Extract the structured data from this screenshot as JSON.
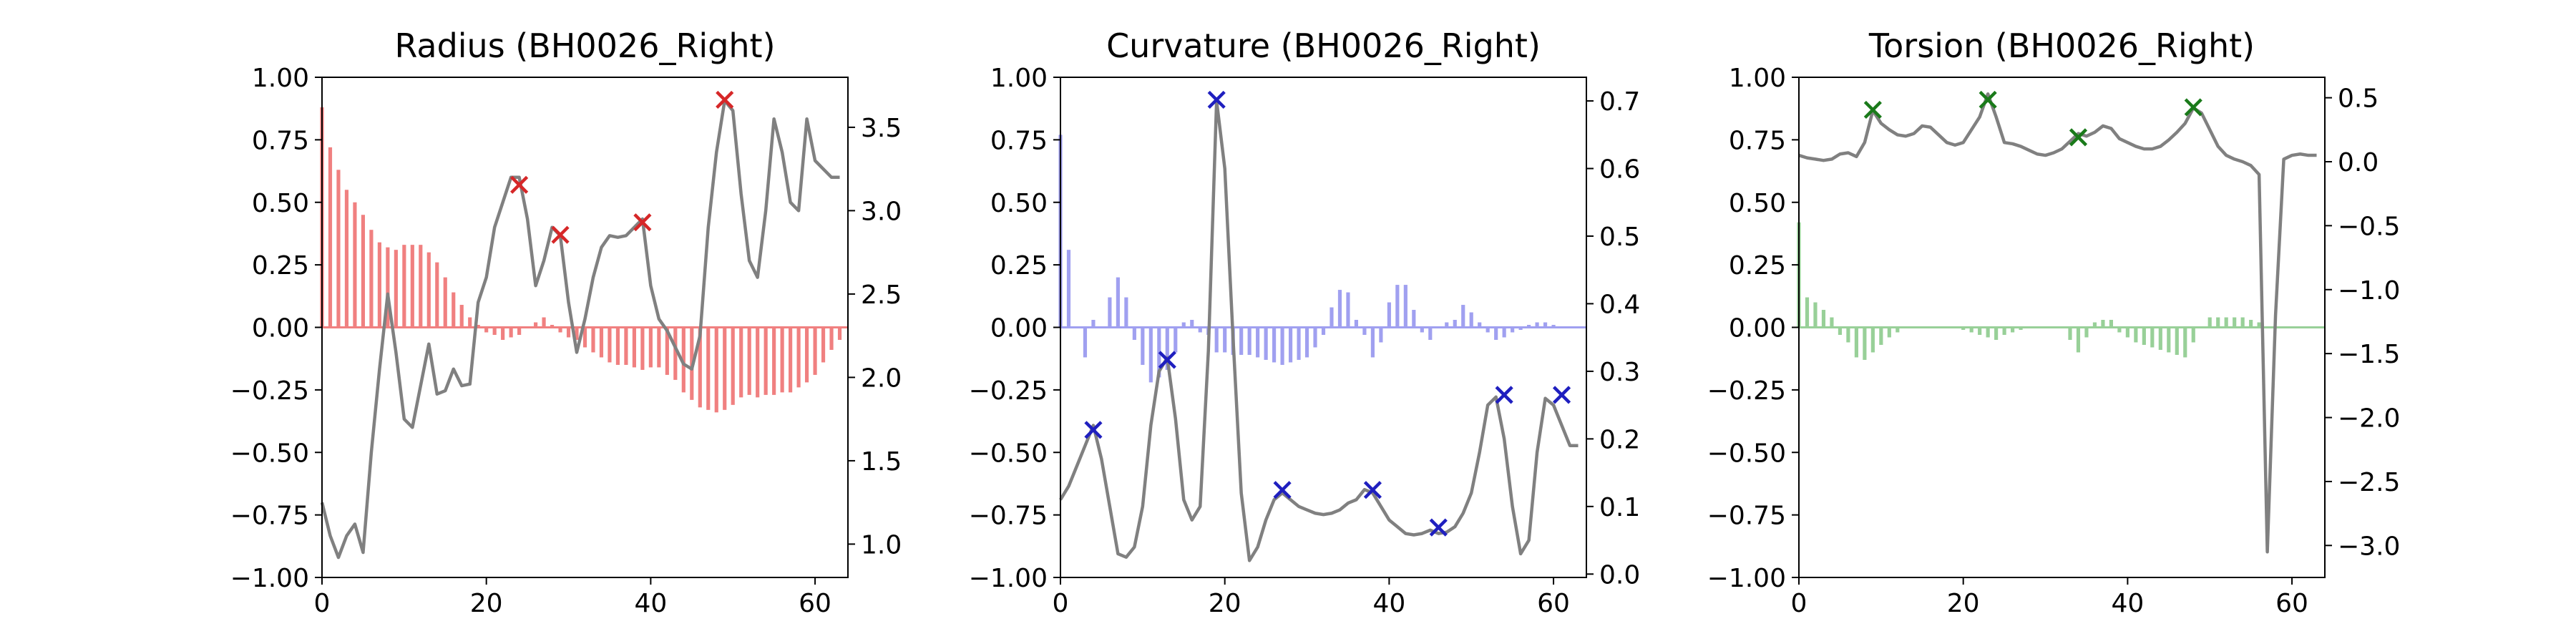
{
  "chart_data": [
    {
      "type": "bar",
      "title": "Radius (BH0026_Right)",
      "xlim": [
        0,
        64
      ],
      "ylim": [
        -1.0,
        1.0
      ],
      "y2lim": [
        0.8,
        3.8
      ],
      "x_ticks": [
        0,
        20,
        40,
        60
      ],
      "y_ticks": [
        -1.0,
        -0.75,
        -0.5,
        -0.25,
        0.0,
        0.25,
        0.5,
        0.75,
        1.0
      ],
      "y_tick_labels": [
        "−1.00",
        "−0.75",
        "−0.50",
        "−0.25",
        "0.00",
        "0.25",
        "0.50",
        "0.75",
        "1.00"
      ],
      "y2_ticks": [
        1.0,
        1.5,
        2.0,
        2.5,
        3.0,
        3.5
      ],
      "y2_tick_labels": [
        "1.0",
        "1.5",
        "2.0",
        "2.5",
        "3.0",
        "3.5"
      ],
      "colors": {
        "bars": "#f08080",
        "line": "#808080",
        "markers": "#d62728"
      },
      "bars": [
        0.88,
        0.72,
        0.63,
        0.55,
        0.5,
        0.45,
        0.39,
        0.34,
        0.32,
        0.31,
        0.33,
        0.33,
        0.33,
        0.3,
        0.26,
        0.2,
        0.14,
        0.09,
        0.04,
        0.01,
        -0.02,
        -0.03,
        -0.05,
        -0.04,
        -0.03,
        0.0,
        0.02,
        0.04,
        0.01,
        -0.02,
        -0.04,
        -0.05,
        -0.08,
        -0.1,
        -0.12,
        -0.14,
        -0.15,
        -0.15,
        -0.16,
        -0.17,
        -0.16,
        -0.16,
        -0.19,
        -0.21,
        -0.26,
        -0.29,
        -0.32,
        -0.33,
        -0.34,
        -0.33,
        -0.31,
        -0.28,
        -0.27,
        -0.28,
        -0.27,
        -0.27,
        -0.26,
        -0.26,
        -0.24,
        -0.22,
        -0.19,
        -0.14,
        -0.09,
        -0.05
      ],
      "line": [
        1.25,
        1.05,
        0.92,
        1.05,
        1.12,
        0.95,
        1.55,
        2.05,
        2.5,
        2.15,
        1.75,
        1.7,
        1.95,
        2.2,
        1.9,
        1.92,
        2.05,
        1.95,
        1.96,
        2.45,
        2.6,
        2.9,
        3.05,
        3.2,
        3.2,
        2.95,
        2.55,
        2.7,
        2.9,
        2.85,
        2.45,
        2.15,
        2.35,
        2.6,
        2.78,
        2.85,
        2.84,
        2.85,
        2.9,
        2.95,
        2.55,
        2.35,
        2.28,
        2.18,
        2.08,
        2.05,
        2.25,
        2.9,
        3.35,
        3.66,
        3.6,
        3.1,
        2.7,
        2.6,
        3.0,
        3.55,
        3.35,
        3.05,
        3.0,
        3.55,
        3.3,
        3.25,
        3.2,
        3.2
      ],
      "markers": [
        [
          24,
          0.57
        ],
        [
          29,
          0.37
        ],
        [
          39,
          0.42
        ],
        [
          49,
          0.91
        ]
      ]
    },
    {
      "type": "bar",
      "title": "Curvature (BH0026_Right)",
      "xlim": [
        0,
        64
      ],
      "ylim": [
        -1.0,
        1.0
      ],
      "y2lim": [
        -0.005,
        0.735
      ],
      "x_ticks": [
        0,
        20,
        40,
        60
      ],
      "y_ticks": [
        -1.0,
        -0.75,
        -0.5,
        -0.25,
        0.0,
        0.25,
        0.5,
        0.75,
        1.0
      ],
      "y_tick_labels": [
        "−1.00",
        "−0.75",
        "−0.50",
        "−0.25",
        "0.00",
        "0.25",
        "0.50",
        "0.75",
        "1.00"
      ],
      "y2_ticks": [
        0.0,
        0.1,
        0.2,
        0.3,
        0.4,
        0.5,
        0.6,
        0.7
      ],
      "y2_tick_labels": [
        "0.0",
        "0.1",
        "0.2",
        "0.3",
        "0.4",
        "0.5",
        "0.6",
        "0.7"
      ],
      "colors": {
        "bars": "#a0a0f0",
        "line": "#808080",
        "markers": "#1f1fbf"
      },
      "bars": [
        0.77,
        0.31,
        0.0,
        -0.12,
        0.03,
        0.0,
        0.12,
        0.2,
        0.12,
        -0.05,
        -0.15,
        -0.22,
        -0.2,
        -0.17,
        -0.1,
        0.02,
        0.03,
        -0.02,
        -0.03,
        -0.1,
        -0.1,
        -0.11,
        -0.11,
        -0.11,
        -0.12,
        -0.13,
        -0.14,
        -0.15,
        -0.14,
        -0.13,
        -0.12,
        -0.08,
        -0.03,
        0.08,
        0.15,
        0.14,
        0.03,
        -0.03,
        -0.12,
        -0.06,
        0.1,
        0.17,
        0.17,
        0.07,
        -0.02,
        -0.05,
        0.0,
        0.02,
        0.03,
        0.09,
        0.06,
        0.02,
        -0.02,
        -0.05,
        -0.04,
        -0.02,
        -0.01,
        0.01,
        0.02,
        0.02,
        0.01,
        0.0,
        0.0,
        0.0
      ],
      "line": [
        0.11,
        0.13,
        0.16,
        0.19,
        0.22,
        0.17,
        0.1,
        0.03,
        0.025,
        0.04,
        0.1,
        0.22,
        0.3,
        0.32,
        0.23,
        0.11,
        0.08,
        0.1,
        0.33,
        0.7,
        0.6,
        0.35,
        0.12,
        0.02,
        0.04,
        0.08,
        0.11,
        0.12,
        0.11,
        0.1,
        0.095,
        0.09,
        0.088,
        0.09,
        0.095,
        0.105,
        0.11,
        0.125,
        0.12,
        0.1,
        0.08,
        0.07,
        0.06,
        0.058,
        0.06,
        0.065,
        0.06,
        0.062,
        0.07,
        0.09,
        0.12,
        0.18,
        0.25,
        0.262,
        0.2,
        0.1,
        0.03,
        0.05,
        0.18,
        0.26,
        0.25,
        0.22,
        0.19,
        0.19
      ],
      "markers": [
        [
          4,
          -0.41
        ],
        [
          13,
          -0.13
        ],
        [
          19,
          0.91
        ],
        [
          27,
          -0.65
        ],
        [
          38,
          -0.65
        ],
        [
          46,
          -0.8
        ],
        [
          54,
          -0.27
        ],
        [
          61,
          -0.27
        ]
      ]
    },
    {
      "type": "bar",
      "title": "Torsion (BH0026_Right)",
      "xlim": [
        0,
        64
      ],
      "ylim": [
        -1.0,
        1.0
      ],
      "y2lim": [
        -3.25,
        0.66
      ],
      "x_ticks": [
        0,
        20,
        40,
        60
      ],
      "y_ticks": [
        -1.0,
        -0.75,
        -0.5,
        -0.25,
        0.0,
        0.25,
        0.5,
        0.75,
        1.0
      ],
      "y_tick_labels": [
        "−1.00",
        "−0.75",
        "−0.50",
        "−0.25",
        "0.00",
        "0.25",
        "0.50",
        "0.75",
        "1.00"
      ],
      "y2_ticks": [
        -3.0,
        -2.5,
        -2.0,
        -1.5,
        -1.0,
        -0.5,
        0.0,
        0.5
      ],
      "y2_tick_labels": [
        "−3.0",
        "−2.5",
        "−2.0",
        "−1.5",
        "−1.0",
        "−0.5",
        "0.0",
        "0.5"
      ],
      "colors": {
        "bars": "#98d098",
        "line": "#808080",
        "markers": "#1a7a1a"
      },
      "bars": [
        0.42,
        0.12,
        0.1,
        0.07,
        0.04,
        -0.03,
        -0.06,
        -0.12,
        -0.13,
        -0.1,
        -0.07,
        -0.04,
        -0.02,
        0.0,
        0.0,
        0.0,
        0.0,
        0.0,
        0.0,
        0.0,
        -0.01,
        -0.02,
        -0.03,
        -0.04,
        -0.05,
        -0.03,
        -0.02,
        -0.01,
        0.0,
        0.0,
        0.0,
        0.0,
        0.0,
        -0.05,
        -0.1,
        -0.04,
        0.02,
        0.03,
        0.03,
        -0.02,
        -0.04,
        -0.06,
        -0.07,
        -0.08,
        -0.09,
        -0.1,
        -0.11,
        -0.12,
        -0.06,
        0.0,
        0.04,
        0.04,
        0.04,
        0.04,
        0.04,
        0.03,
        0.02,
        0.0,
        0.0,
        0.0,
        0.0,
        0.0,
        0.0,
        0.0
      ],
      "line": [
        0.05,
        0.03,
        0.02,
        0.01,
        0.02,
        0.06,
        0.07,
        0.04,
        0.15,
        0.4,
        0.3,
        0.25,
        0.21,
        0.2,
        0.22,
        0.28,
        0.27,
        0.21,
        0.15,
        0.13,
        0.15,
        0.25,
        0.35,
        0.53,
        0.35,
        0.15,
        0.14,
        0.12,
        0.09,
        0.06,
        0.05,
        0.07,
        0.1,
        0.16,
        0.22,
        0.2,
        0.23,
        0.28,
        0.26,
        0.18,
        0.15,
        0.12,
        0.1,
        0.1,
        0.12,
        0.17,
        0.23,
        0.3,
        0.42,
        0.38,
        0.25,
        0.12,
        0.05,
        0.02,
        0.0,
        -0.03,
        -0.1,
        -3.05,
        -1.2,
        0.02,
        0.05,
        0.06,
        0.05,
        0.05
      ],
      "markers": [
        [
          9,
          0.87
        ],
        [
          23,
          0.91
        ],
        [
          34,
          0.76
        ],
        [
          48,
          0.88
        ]
      ]
    }
  ]
}
